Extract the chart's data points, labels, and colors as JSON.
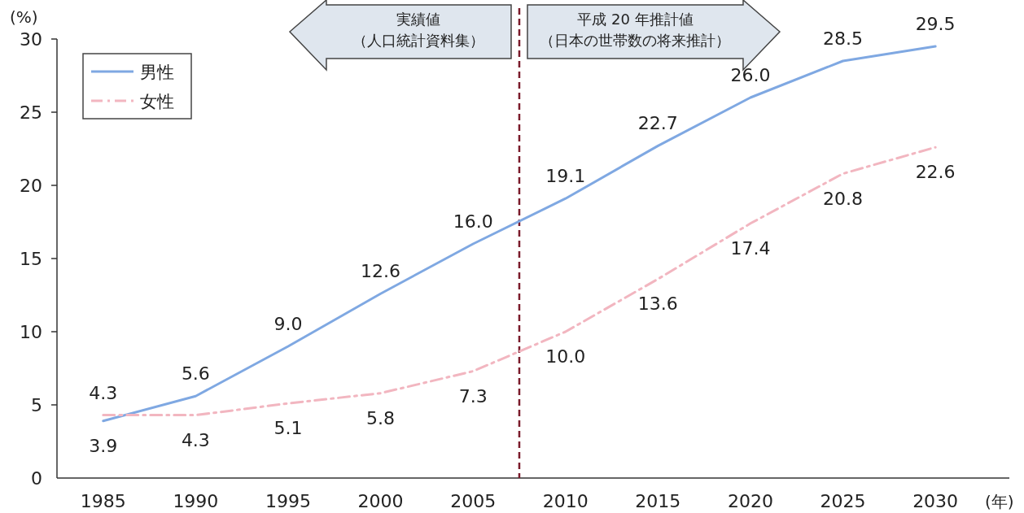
{
  "chart_data": {
    "type": "line",
    "xlabel": "(年)",
    "ylabel": "(%)",
    "x": [
      1985,
      1990,
      1995,
      2000,
      2005,
      2010,
      2015,
      2020,
      2025,
      2030
    ],
    "series": [
      {
        "name": "男性",
        "color": "#7fa8e2",
        "line_style": "solid",
        "values": [
          3.9,
          5.6,
          9.0,
          12.6,
          16.0,
          19.1,
          22.7,
          26.0,
          28.5,
          29.5
        ],
        "value_labels": [
          "3.9",
          "5.6",
          "9.0",
          "12.6",
          "16.0",
          "19.1",
          "22.7",
          "26.0",
          "28.5",
          "29.5"
        ]
      },
      {
        "name": "女性",
        "color": "#f2b6c0",
        "line_style": "dashed",
        "values": [
          4.3,
          4.3,
          5.1,
          5.8,
          7.3,
          10.0,
          13.6,
          17.4,
          20.8,
          22.6
        ],
        "value_labels": [
          "4.3",
          "4.3",
          "5.1",
          "5.8",
          "7.3",
          "10.0",
          "13.6",
          "17.4",
          "20.8",
          "22.6"
        ]
      }
    ],
    "xlim": [
      1982.5,
      2034
    ],
    "xticks": [
      1985,
      1990,
      1995,
      2000,
      2005,
      2010,
      2015,
      2020,
      2025,
      2030
    ],
    "ylim": [
      0,
      30
    ],
    "yticks": [
      0,
      5,
      10,
      15,
      20,
      25,
      30
    ],
    "ref_lines": [
      {
        "axis": "x",
        "value": 2007.5,
        "color": "#7a1a2a",
        "line_style": "dashed"
      }
    ],
    "annotations": [
      "実績値（人口統計資料集）",
      "平成 20 年推計値（日本の世帯数の将来推計）"
    ],
    "grid": false,
    "legend": "top left"
  }
}
